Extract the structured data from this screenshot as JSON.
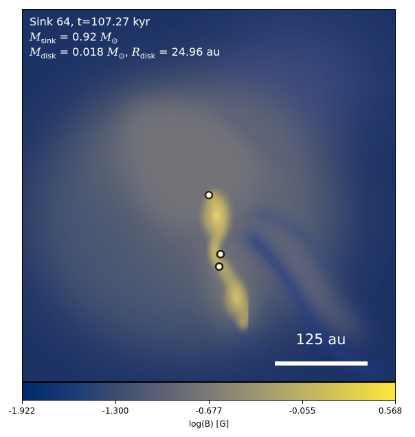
{
  "panel": {
    "title_line": "Sink 64, t=107.27 kyr",
    "sink_mass": {
      "symbol": "M",
      "subscript": "sink",
      "value": "= 0.92",
      "unit_symbol": "M",
      "unit_subscript": "⊙"
    },
    "disk_mass": {
      "symbol": "M",
      "subscript": "disk",
      "value": "= 0.018",
      "unit_symbol": "M",
      "unit_subscript": "⊙"
    },
    "disk_radius": {
      "symbol": "R",
      "subscript": "disk",
      "value": "= 24.96 au"
    }
  },
  "scalebar": {
    "label": "125 au"
  },
  "colorbar": {
    "label": "log(B) [G]",
    "ticks": [
      "-1.922",
      "-1.300",
      "-0.677",
      "-0.055",
      "0.568"
    ]
  },
  "sinks": [
    {
      "id": "sink-1"
    },
    {
      "id": "sink-2"
    },
    {
      "id": "sink-3"
    }
  ],
  "colors": {
    "low": "#002a6a",
    "mid": "#7c7b78",
    "high": "#fde73a"
  }
}
